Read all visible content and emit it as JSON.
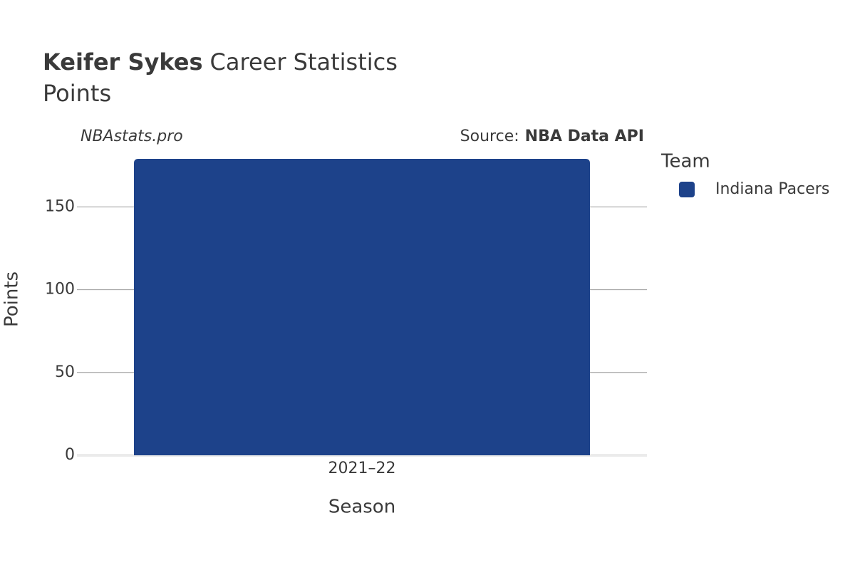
{
  "chart_data": {
    "type": "bar",
    "title_name": "Keifer Sykes",
    "title": "Career Statistics",
    "subtitle": "Points",
    "watermark": "NBAstats.pro",
    "source_label": "Source:",
    "source": "NBA Data API",
    "x_label": "Season",
    "y_label": "Points",
    "legend_title": "Team",
    "categories": [
      "2021–22"
    ],
    "series": [
      {
        "name": "Indiana Pacers",
        "color": "#1d428a",
        "values": [
          179
        ]
      }
    ],
    "ylim": [
      0,
      179
    ],
    "yticks": [
      0,
      50,
      100,
      150
    ],
    "grid": true,
    "legend": "right"
  }
}
